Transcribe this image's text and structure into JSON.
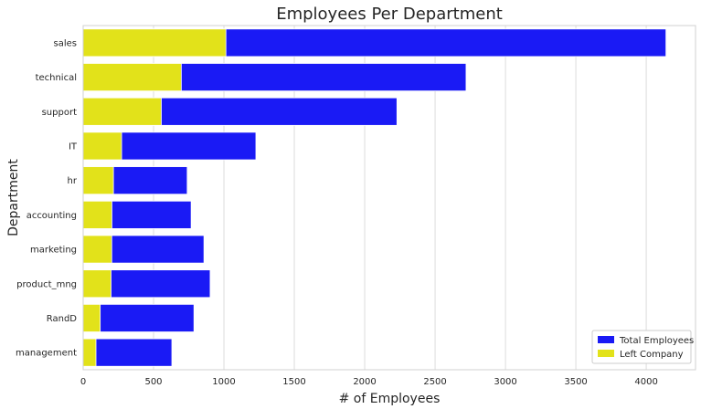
{
  "chart_data": {
    "type": "bar",
    "orientation": "horizontal",
    "title": "Employees Per Department",
    "xlabel": "# of Employees",
    "ylabel": "Department",
    "xlim": [
      0,
      4350
    ],
    "xticks": [
      0,
      500,
      1000,
      1500,
      2000,
      2500,
      3000,
      3500,
      4000
    ],
    "grid": true,
    "legend_position": "bottom-right",
    "categories": [
      "sales",
      "technical",
      "support",
      "IT",
      "hr",
      "accounting",
      "marketing",
      "product_mng",
      "RandD",
      "management"
    ],
    "series": [
      {
        "name": "Total Employees",
        "color": "#1a1af5",
        "values": [
          4140,
          2720,
          2229,
          1227,
          739,
          767,
          858,
          902,
          787,
          630
        ]
      },
      {
        "name": "Left Company",
        "color": "#e2e21a",
        "values": [
          1014,
          697,
          555,
          273,
          215,
          204,
          203,
          198,
          121,
          91
        ]
      }
    ]
  }
}
